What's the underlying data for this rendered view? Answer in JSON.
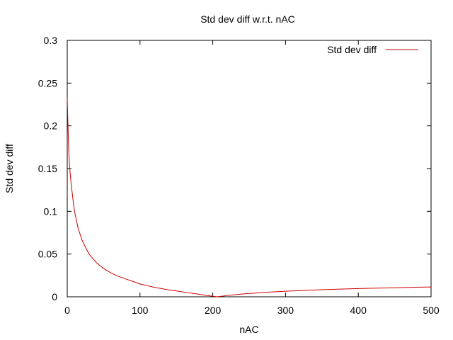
{
  "chart_data": {
    "type": "line",
    "title": "Std dev diff w.r.t. nAC",
    "xlabel": "nAC",
    "ylabel": "Std dev diff",
    "xlim": [
      0,
      500
    ],
    "ylim": [
      0,
      0.3
    ],
    "x_ticks": [
      "0",
      "100",
      "200",
      "300",
      "400",
      "500"
    ],
    "y_ticks": [
      "0",
      "0.05",
      "0.1",
      "0.15",
      "0.2",
      "0.25",
      "0.3"
    ],
    "grid": false,
    "legend_position": "top-right",
    "series": [
      {
        "name": "Std dev diff",
        "color": "#cc0000",
        "x": [
          0,
          1,
          2,
          3,
          5,
          8,
          10,
          15,
          20,
          25,
          30,
          40,
          50,
          60,
          70,
          80,
          90,
          100,
          110,
          120,
          130,
          140,
          150,
          160,
          170,
          180,
          190,
          200,
          205,
          210,
          220,
          230,
          240,
          250,
          260,
          280,
          300,
          320,
          340,
          360,
          380,
          400,
          420,
          440,
          460,
          480,
          500
        ],
        "y": [
          0.232,
          0.2,
          0.172,
          0.155,
          0.135,
          0.113,
          0.1,
          0.08,
          0.067,
          0.058,
          0.05,
          0.04,
          0.033,
          0.028,
          0.024,
          0.021,
          0.018,
          0.015,
          0.013,
          0.011,
          0.0095,
          0.008,
          0.0068,
          0.0055,
          0.0043,
          0.0031,
          0.0018,
          0.0006,
          0.0001,
          0.0004,
          0.0015,
          0.0024,
          0.0032,
          0.0039,
          0.0045,
          0.0056,
          0.0065,
          0.0073,
          0.008,
          0.0086,
          0.0091,
          0.0096,
          0.01,
          0.0104,
          0.0108,
          0.0112,
          0.0115
        ]
      }
    ]
  }
}
